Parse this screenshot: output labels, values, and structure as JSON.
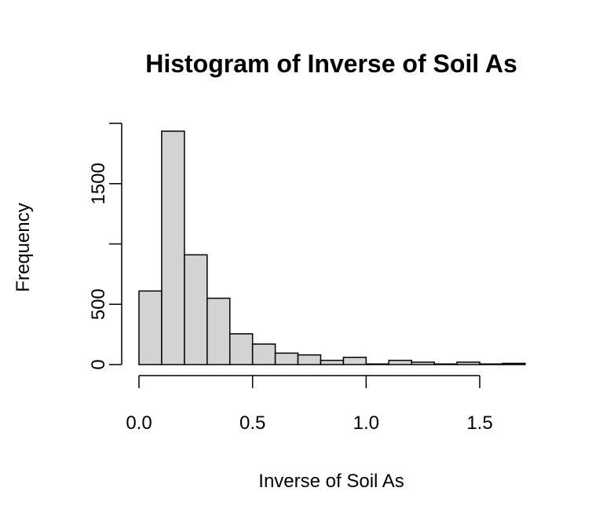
{
  "chart_data": {
    "type": "bar",
    "title": "Histogram of Inverse of Soil As",
    "xlabel": "Inverse of Soil As",
    "ylabel": "Frequency",
    "bin_width": 0.1,
    "bins": [
      {
        "start": 0.0,
        "end": 0.1,
        "count": 610
      },
      {
        "start": 0.1,
        "end": 0.2,
        "count": 1935
      },
      {
        "start": 0.2,
        "end": 0.3,
        "count": 910
      },
      {
        "start": 0.3,
        "end": 0.4,
        "count": 550
      },
      {
        "start": 0.4,
        "end": 0.5,
        "count": 255
      },
      {
        "start": 0.5,
        "end": 0.6,
        "count": 170
      },
      {
        "start": 0.6,
        "end": 0.7,
        "count": 95
      },
      {
        "start": 0.7,
        "end": 0.8,
        "count": 80
      },
      {
        "start": 0.8,
        "end": 0.9,
        "count": 35
      },
      {
        "start": 0.9,
        "end": 1.0,
        "count": 60
      },
      {
        "start": 1.0,
        "end": 1.1,
        "count": 5
      },
      {
        "start": 1.1,
        "end": 1.2,
        "count": 35
      },
      {
        "start": 1.2,
        "end": 1.3,
        "count": 20
      },
      {
        "start": 1.3,
        "end": 1.4,
        "count": 5
      },
      {
        "start": 1.4,
        "end": 1.5,
        "count": 20
      },
      {
        "start": 1.5,
        "end": 1.6,
        "count": 5
      },
      {
        "start": 1.6,
        "end": 1.7,
        "count": 10
      }
    ],
    "x_ticks": [
      {
        "value": 0.0,
        "label": "0.0"
      },
      {
        "value": 0.5,
        "label": "0.5"
      },
      {
        "value": 1.0,
        "label": "1.0"
      },
      {
        "value": 1.5,
        "label": "1.5"
      }
    ],
    "y_ticks": [
      {
        "value": 0,
        "label": "0"
      },
      {
        "value": 500,
        "label": "500"
      },
      {
        "value": 1000,
        "label": ""
      },
      {
        "value": 1500,
        "label": "1500"
      },
      {
        "value": 2000,
        "label": ""
      }
    ],
    "xlim": [
      0,
      1.7
    ],
    "ylim": [
      0,
      2000
    ],
    "grid": false,
    "colors": {
      "bar_fill": "#d3d3d3",
      "bar_stroke": "#000000"
    }
  }
}
